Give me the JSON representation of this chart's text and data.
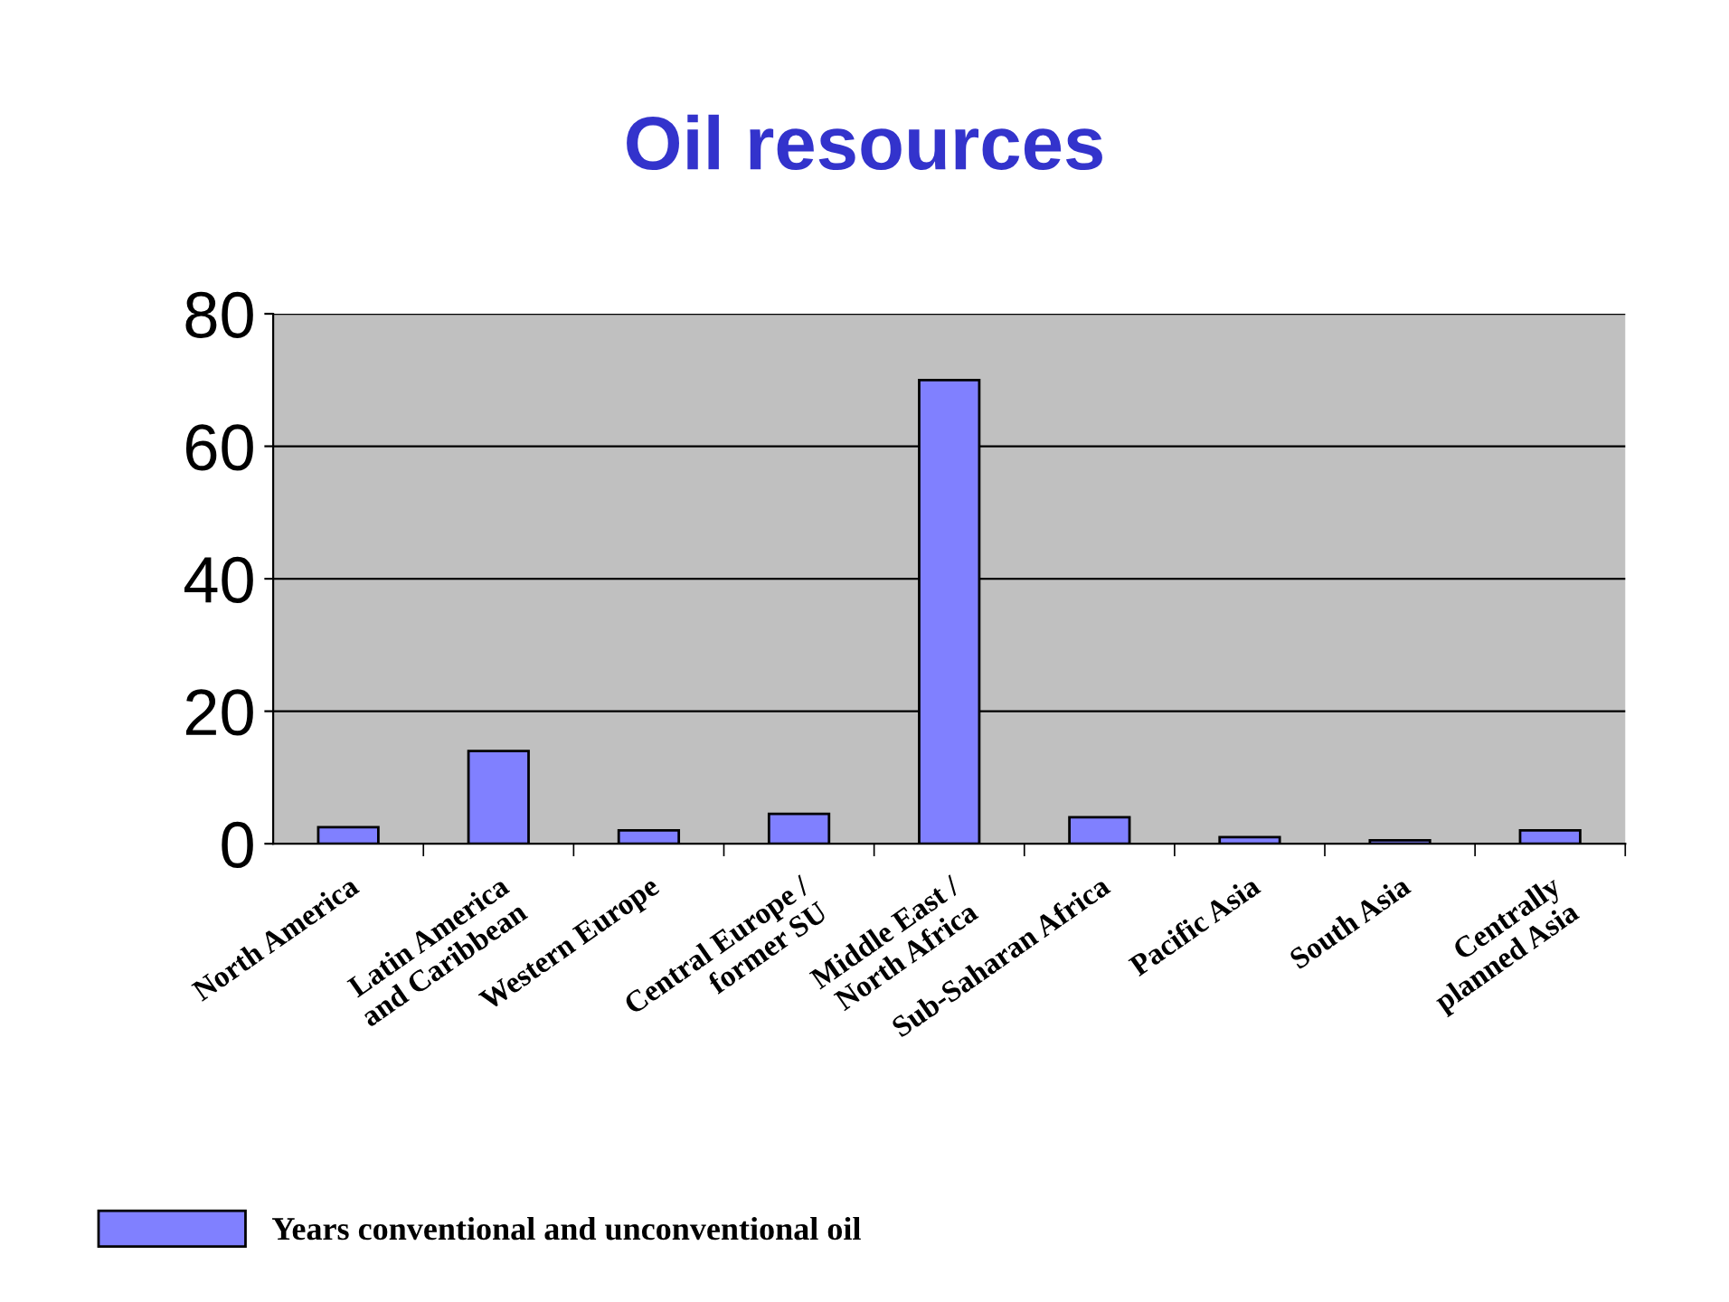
{
  "chart_data": {
    "type": "bar",
    "title": "Oil resources",
    "categories": [
      "North America",
      "Latin America\nand Caribbean",
      "Western Europe",
      "Central Europe /\nformer SU",
      "Middle East /\nNorth Africa",
      "Sub-Saharan Africa",
      "Pacific Asia",
      "South Asia",
      "Centrally\nplanned Asia"
    ],
    "series": [
      {
        "name": "Years conventional and unconventional oil",
        "color": "#8080ff",
        "values": [
          2.5,
          14,
          2,
          4.5,
          70,
          4,
          1,
          0.5,
          2
        ]
      }
    ],
    "ylim": [
      0,
      80
    ],
    "yticks": [
      0,
      20,
      40,
      60,
      80
    ],
    "grid": "y",
    "legend": "bottom left"
  }
}
